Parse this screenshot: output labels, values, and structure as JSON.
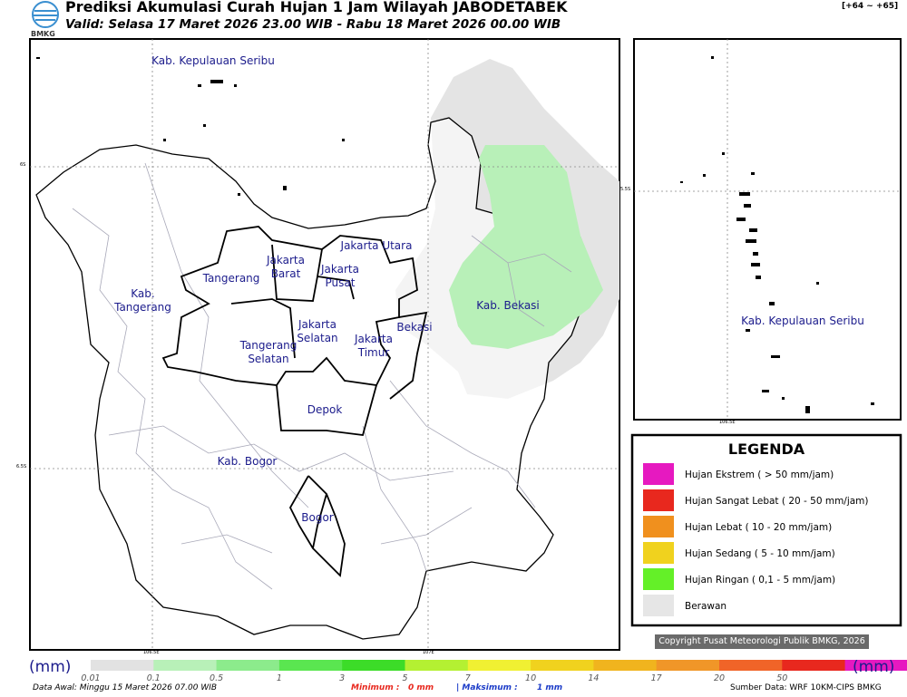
{
  "header": {
    "title": "Prediksi Akumulasi Curah Hujan 1 Jam Wilayah JABODETABEK",
    "valid": "Valid: Selasa 17 Maret 2026 23.00 WIB - Rabu 18 Maret 2026 00.00 WIB",
    "range": "[+64 ~ +65]",
    "logo": "BMKG"
  },
  "map": {
    "grid_labels": [
      "6S",
      "6.5S",
      "106.5E",
      "107E"
    ],
    "regions": [
      "Kab. Kepulauan Seribu",
      "Jakarta Utara",
      "Jakarta Barat",
      "Jakarta Pusat",
      "Tangerang",
      "Kab. Tangerang",
      "Jakarta Selatan",
      "Jakarta Timur",
      "Bekasi",
      "Kab. Bekasi",
      "Tangerang Selatan",
      "Depok",
      "Kab. Bogor",
      "Bogor"
    ]
  },
  "inset": {
    "grid_labels": [
      "5.5S",
      "106.5E"
    ],
    "label": "Kab. Kepulauan Seribu"
  },
  "legend": {
    "title": "LEGENDA",
    "items": [
      {
        "label": "Hujan Ekstrem ( > 50 mm/jam)",
        "color": "#e619c0"
      },
      {
        "label": "Hujan Sangat Lebat ( 20 - 50 mm/jam)",
        "color": "#e8281e"
      },
      {
        "label": "Hujan Lebat ( 10 - 20 mm/jam)",
        "color": "#f0901e"
      },
      {
        "label": "Hujan Sedang ( 5 - 10 mm/jam)",
        "color": "#f0d21e"
      },
      {
        "label": "Hujan Ringan ( 0,1 - 5 mm/jam)",
        "color": "#64f028"
      },
      {
        "label": "Berawan",
        "color": "#e6e6e6"
      }
    ]
  },
  "copyright": "Copyright Pusat Meteorologi Publik BMKG, 2026",
  "colorbar": {
    "unit": "(mm)",
    "ticks": [
      "0.01",
      "0.1",
      "0.5",
      "1",
      "3",
      "5",
      "7",
      "10",
      "14",
      "17",
      "20",
      "50"
    ],
    "colors": [
      "#e2e2e2",
      "#b8f0b8",
      "#8ceb8c",
      "#5ae650",
      "#3cdc28",
      "#b4f032",
      "#f0f032",
      "#f0d21e",
      "#f0b41e",
      "#f09628",
      "#f06428",
      "#e8281e",
      "#e619c0"
    ]
  },
  "footer": {
    "start": "Data Awal: Minggu 15 Maret 2026 07.00 WIB",
    "min_label": "Minimum :",
    "min": "0 mm",
    "max_label": "| Maksimum :",
    "max": "1 mm",
    "source": "Sumber Data: WRF 10KM-CIPS BMKG"
  }
}
